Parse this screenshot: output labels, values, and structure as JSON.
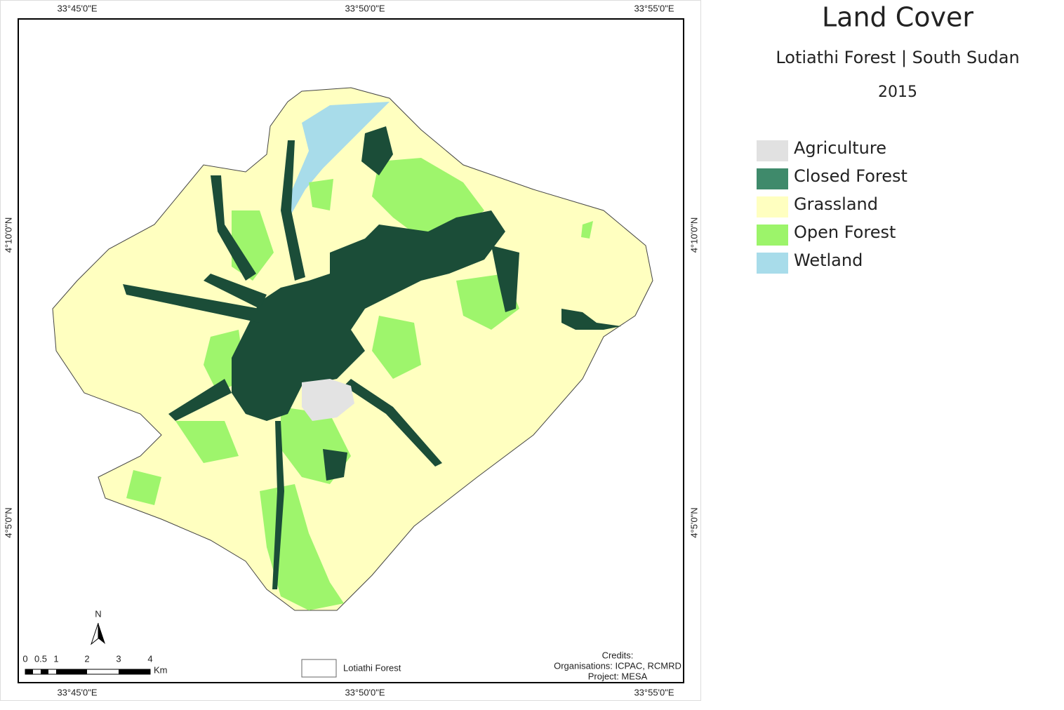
{
  "title": "Land Cover",
  "subtitle": "Lotiathi Forest | South Sudan",
  "year": "2015",
  "legend": [
    {
      "label": "Agriculture",
      "color": "#e1e1e1"
    },
    {
      "label": "Closed Forest",
      "color": "#3f8a6b"
    },
    {
      "label": "Grassland",
      "color": "#ffffc0"
    },
    {
      "label": "Open Forest",
      "color": "#9cf46a"
    },
    {
      "label": "Wetland",
      "color": "#a8dcea"
    }
  ],
  "graticule": {
    "top": [
      "33°45'0\"E",
      "33°50'0\"E",
      "33°55'0\"E"
    ],
    "bottom": [
      "33°45'0\"E",
      "33°50'0\"E",
      "33°55'0\"E"
    ],
    "left": [
      "4°10'0\"N",
      "4°5'0\"N"
    ],
    "right": [
      "4°10'0\"N",
      "4°5'0\"N"
    ]
  },
  "north_arrow": "N",
  "scale_bar": {
    "labels": [
      "0",
      "0.5",
      "1",
      "2",
      "3",
      "4"
    ],
    "unit": "Km"
  },
  "boundary_legend": "Lotiathi Forest",
  "credits": [
    "Credits:",
    "Organisations: ICPAC, RCMRD",
    "Project: MESA"
  ]
}
